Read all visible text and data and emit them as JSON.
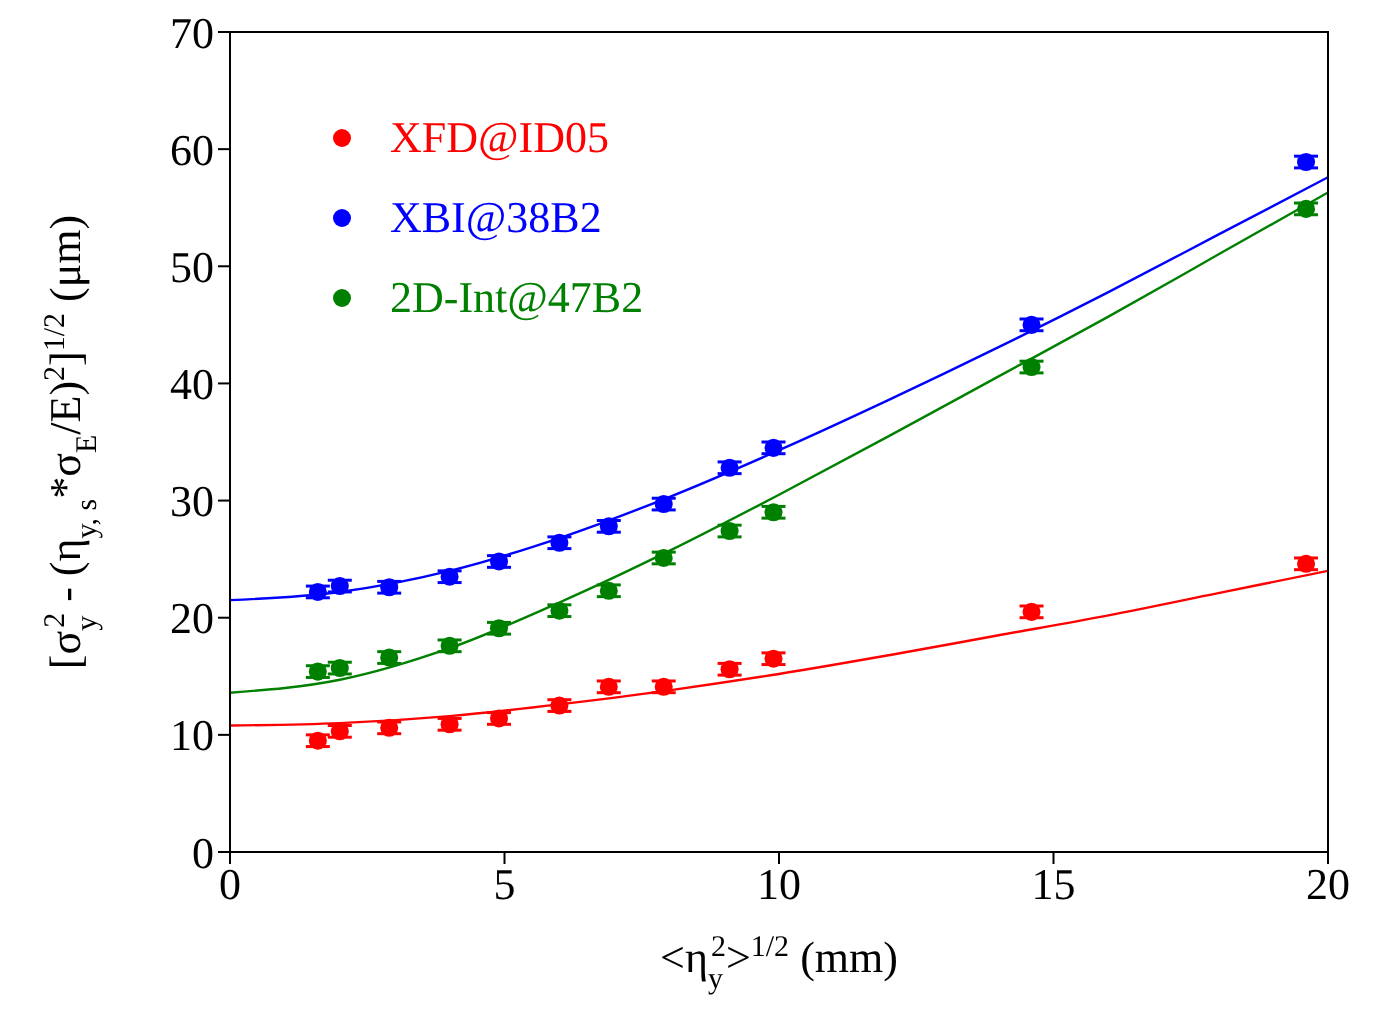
{
  "chart_data": {
    "type": "scatter",
    "xlabel": "<η$_{y}$$^{2}$>$^{1/2}$ (mm)",
    "ylabel": "[σ$_{y}$$^{2}$ - (η$_{y, s}$*σ$_{E}$/E)$^{2}$]$^{1/2}$ (μm)",
    "x": [
      1.6,
      2.0,
      2.9,
      4.0,
      4.9,
      6.0,
      6.9,
      7.9,
      9.1,
      9.9,
      14.6,
      19.6
    ],
    "series": [
      {
        "name": "XFD@ID05",
        "color": "#ff0000",
        "values": [
          9.5,
          10.3,
          10.6,
          10.9,
          11.4,
          12.5,
          14.1,
          14.1,
          15.6,
          16.5,
          20.5,
          24.6
        ],
        "errors": [
          0.5,
          0.5,
          0.5,
          0.5,
          0.5,
          0.5,
          0.5,
          0.5,
          0.5,
          0.5,
          0.5,
          0.5
        ]
      },
      {
        "name": "XBI@38B2",
        "color": "#0000ff",
        "values": [
          22.2,
          22.7,
          22.6,
          23.5,
          24.8,
          26.4,
          27.8,
          29.7,
          32.8,
          34.5,
          45.0,
          58.9
        ],
        "errors": [
          0.5,
          0.5,
          0.5,
          0.5,
          0.5,
          0.5,
          0.5,
          0.5,
          0.5,
          0.5,
          0.5,
          0.5
        ]
      },
      {
        "name": "2D-Int@47B2",
        "color": "#008000",
        "values": [
          15.4,
          15.7,
          16.6,
          17.6,
          19.1,
          20.6,
          22.3,
          25.1,
          27.4,
          29.0,
          41.4,
          54.9
        ],
        "errors": [
          0.5,
          0.5,
          0.5,
          0.5,
          0.5,
          0.5,
          0.5,
          0.5,
          0.5,
          0.5,
          0.5,
          0.5
        ]
      },
      {
        "type": "line",
        "marker": "none",
        "color": "#ff0000",
        "x": [
          0,
          2,
          4,
          6,
          8,
          10,
          12,
          14,
          16,
          18,
          20
        ],
        "values": [
          10.8,
          11.0,
          11.6,
          12.6,
          13.8,
          15.2,
          16.8,
          18.5,
          20.2,
          22.1,
          24.0
        ]
      },
      {
        "type": "line",
        "marker": "none",
        "color": "#0000ff",
        "x": [
          0,
          2,
          4,
          6,
          8,
          10,
          12,
          14,
          16,
          18,
          20
        ],
        "values": [
          21.5,
          22.2,
          24.0,
          26.8,
          30.3,
          34.3,
          38.6,
          43.1,
          47.8,
          52.7,
          57.6
        ]
      },
      {
        "type": "line",
        "marker": "none",
        "color": "#008000",
        "x": [
          0,
          2,
          4,
          6,
          8,
          10,
          12,
          14,
          16,
          18,
          20
        ],
        "values": [
          13.6,
          14.7,
          17.4,
          21.3,
          25.7,
          30.5,
          35.5,
          40.6,
          45.7,
          51.0,
          56.3
        ]
      }
    ],
    "xlim": [
      0,
      20
    ],
    "xticks": [
      0,
      5,
      10,
      15,
      20
    ],
    "ylim": [
      0,
      70
    ],
    "yticks": [
      0,
      10,
      20,
      30,
      40,
      50,
      60,
      70
    ],
    "marker": "circle",
    "legend": "top left"
  }
}
